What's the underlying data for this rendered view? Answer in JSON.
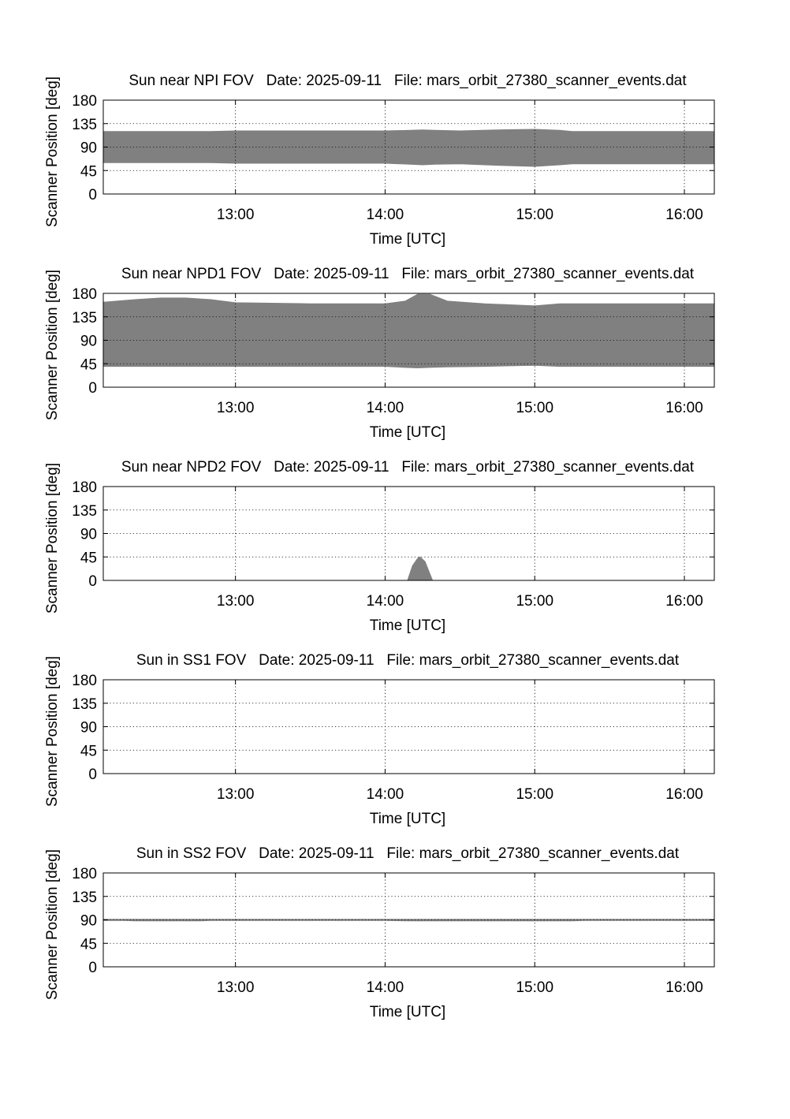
{
  "chart_data": [
    {
      "type": "area",
      "title": "Sun near NPI FOV   Date: 2025-09-11   File: mars_orbit_27380_scanner_events.dat",
      "xlabel": "Time [UTC]",
      "ylabel": "Scanner Position [deg]",
      "xlim": [
        "12:07",
        "16:12"
      ],
      "ylim": [
        0,
        180
      ],
      "x_ticks": [
        "13:00",
        "14:00",
        "15:00",
        "16:00"
      ],
      "y_ticks": [
        0,
        45,
        90,
        135,
        180
      ],
      "grid": true,
      "fill_color": "#808080",
      "x": [
        "12:07",
        "12:25",
        "12:50",
        "13:00",
        "13:30",
        "14:00",
        "14:10",
        "14:15",
        "14:20",
        "14:30",
        "14:45",
        "15:00",
        "15:10",
        "15:15",
        "15:30",
        "16:00",
        "16:12"
      ],
      "lower": [
        60,
        60,
        60,
        59,
        59,
        59,
        57,
        56,
        57,
        58,
        55,
        53,
        56,
        58,
        58,
        58,
        58
      ],
      "upper": [
        120,
        120,
        120,
        121,
        121,
        121,
        122,
        123,
        122,
        121,
        123,
        124,
        122,
        120,
        120,
        120,
        120
      ]
    },
    {
      "type": "area",
      "title": "Sun near NPD1 FOV   Date: 2025-09-11   File: mars_orbit_27380_scanner_events.dat",
      "xlabel": "Time [UTC]",
      "ylabel": "Scanner Position [deg]",
      "xlim": [
        "12:07",
        "16:12"
      ],
      "ylim": [
        0,
        180
      ],
      "x_ticks": [
        "13:00",
        "14:00",
        "15:00",
        "16:00"
      ],
      "y_ticks": [
        0,
        45,
        90,
        135,
        180
      ],
      "grid": true,
      "fill_color": "#808080",
      "x": [
        "12:07",
        "12:20",
        "12:30",
        "12:40",
        "12:50",
        "13:00",
        "13:30",
        "14:00",
        "14:08",
        "14:13",
        "14:18",
        "14:25",
        "14:40",
        "15:00",
        "15:10",
        "15:30",
        "16:00",
        "16:12"
      ],
      "lower": [
        40,
        40,
        40,
        40,
        40,
        40,
        40,
        40,
        38,
        37,
        38,
        39,
        40,
        42,
        40,
        40,
        40,
        40
      ],
      "upper": [
        163,
        168,
        171,
        171,
        168,
        162,
        160,
        160,
        165,
        178,
        178,
        165,
        160,
        156,
        160,
        160,
        160,
        160
      ]
    },
    {
      "type": "area",
      "title": "Sun near NPD2 FOV   Date: 2025-09-11   File: mars_orbit_27380_scanner_events.dat",
      "xlabel": "Time [UTC]",
      "ylabel": "Scanner Position [deg]",
      "xlim": [
        "12:07",
        "16:12"
      ],
      "ylim": [
        0,
        180
      ],
      "x_ticks": [
        "13:00",
        "14:00",
        "15:00",
        "16:00"
      ],
      "y_ticks": [
        0,
        45,
        90,
        135,
        180
      ],
      "grid": true,
      "fill_color": "#808080",
      "x": [
        "14:09",
        "14:11",
        "14:13",
        "14:14",
        "14:16",
        "14:18",
        "14:19"
      ],
      "lower": [
        0,
        0,
        0,
        0,
        0,
        0,
        0
      ],
      "upper": [
        0,
        28,
        42,
        45,
        36,
        12,
        0
      ]
    },
    {
      "type": "area",
      "title": "Sun in SS1 FOV   Date: 2025-09-11   File: mars_orbit_27380_scanner_events.dat",
      "xlabel": "Time [UTC]",
      "ylabel": "Scanner Position [deg]",
      "xlim": [
        "12:07",
        "16:12"
      ],
      "ylim": [
        0,
        180
      ],
      "x_ticks": [
        "13:00",
        "14:00",
        "15:00",
        "16:00"
      ],
      "y_ticks": [
        0,
        45,
        90,
        135,
        180
      ],
      "grid": true,
      "fill_color": "#808080",
      "x": [],
      "lower": [],
      "upper": []
    },
    {
      "type": "area",
      "title": "Sun in SS2 FOV   Date: 2025-09-11   File: mars_orbit_27380_scanner_events.dat",
      "xlabel": "Time [UTC]",
      "ylabel": "Scanner Position [deg]",
      "xlim": [
        "12:07",
        "16:12"
      ],
      "ylim": [
        0,
        180
      ],
      "x_ticks": [
        "13:00",
        "14:00",
        "15:00",
        "16:00"
      ],
      "y_ticks": [
        0,
        45,
        90,
        135,
        180
      ],
      "grid": true,
      "fill_color": "#808080",
      "x": [
        "12:07",
        "12:15",
        "12:20",
        "12:45",
        "12:50",
        "14:00",
        "14:10",
        "14:20",
        "15:00",
        "15:15",
        "15:20",
        "16:12"
      ],
      "lower": [
        89,
        89,
        88,
        88,
        89,
        89,
        88,
        88,
        88,
        88,
        89,
        89
      ],
      "upper": [
        91,
        91,
        91,
        91,
        91,
        91,
        91,
        91,
        91,
        91,
        91,
        91
      ]
    }
  ]
}
